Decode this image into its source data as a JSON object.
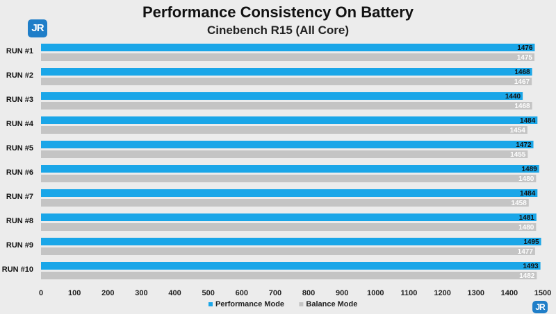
{
  "logo_text": "JR",
  "chart_data": {
    "type": "bar",
    "orientation": "horizontal",
    "title": "Performance Consistency On Battery",
    "subtitle": "Cinebench R15 (All Core)",
    "categories": [
      "RUN #1",
      "RUN #2",
      "RUN #3",
      "RUN #4",
      "RUN #5",
      "RUN #6",
      "RUN #7",
      "RUN #8",
      "RUN #9",
      "RUN #10"
    ],
    "series": [
      {
        "name": "Performance Mode",
        "color": "#1aa6e8",
        "values": [
          1476,
          1468,
          1440,
          1484,
          1472,
          1489,
          1484,
          1481,
          1495,
          1493
        ]
      },
      {
        "name": "Balance Mode",
        "color": "#c4c4c4",
        "values": [
          1475,
          1467,
          1468,
          1454,
          1455,
          1480,
          1458,
          1480,
          1477,
          1482
        ]
      }
    ],
    "xlim": [
      0,
      1500
    ],
    "xticks": [
      0,
      100,
      200,
      300,
      400,
      500,
      600,
      700,
      800,
      900,
      1000,
      1100,
      1200,
      1300,
      1400,
      1500
    ],
    "legend_position": "bottom",
    "grid": false
  }
}
